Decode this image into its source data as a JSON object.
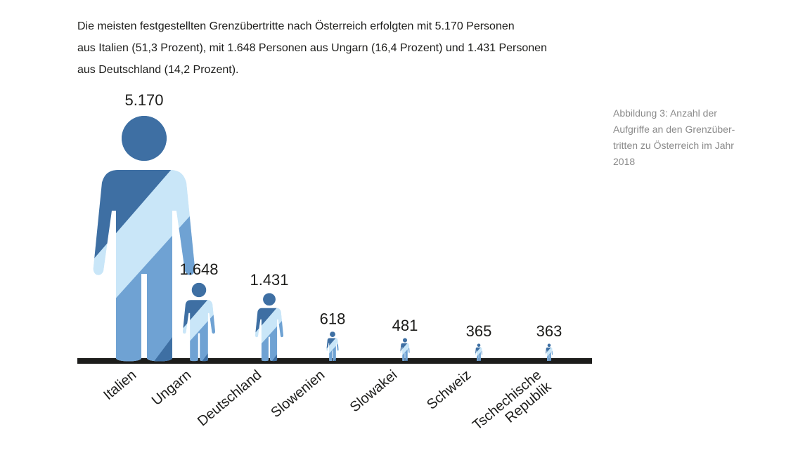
{
  "intro": {
    "line1": "Die meisten festgestellten Grenzübertritte nach Österreich erfolgten mit 5.170 Personen",
    "line2": "aus Italien (51,3 Prozent), mit 1.648 Personen aus Ungarn (16,4 Prozent) und 1.431 Personen",
    "line3": "aus Deutschland (14,2 Prozent)."
  },
  "caption": {
    "line1": "Abbildung 3: Anzahl der",
    "line2": "Aufgriffe an den Grenzüber-",
    "line3": "tritten zu Österreich im Jahr",
    "line4": "2018"
  },
  "colors": {
    "light": "#c9e6f8",
    "mid": "#6fa2d3",
    "dark": "#3e6fa3",
    "baseline": "#1d1d1b"
  },
  "chart_data": {
    "type": "bar",
    "categories": [
      "Italien",
      "Ungarn",
      "Deutschland",
      "Slowenien",
      "Slowakei",
      "Schweiz",
      "Tschechische Republik"
    ],
    "category_lines": [
      [
        "Italien"
      ],
      [
        "Ungarn"
      ],
      [
        "Deutschland"
      ],
      [
        "Slowenien"
      ],
      [
        "Slowakei"
      ],
      [
        "Schweiz"
      ],
      [
        "Tschechische",
        "Republik"
      ]
    ],
    "values": [
      5170,
      1648,
      1431,
      618,
      481,
      365,
      363
    ],
    "value_labels": [
      "5.170",
      "1.648",
      "1.431",
      "618",
      "481",
      "365",
      "363"
    ],
    "marker": "person-pictogram",
    "grid": false
  }
}
